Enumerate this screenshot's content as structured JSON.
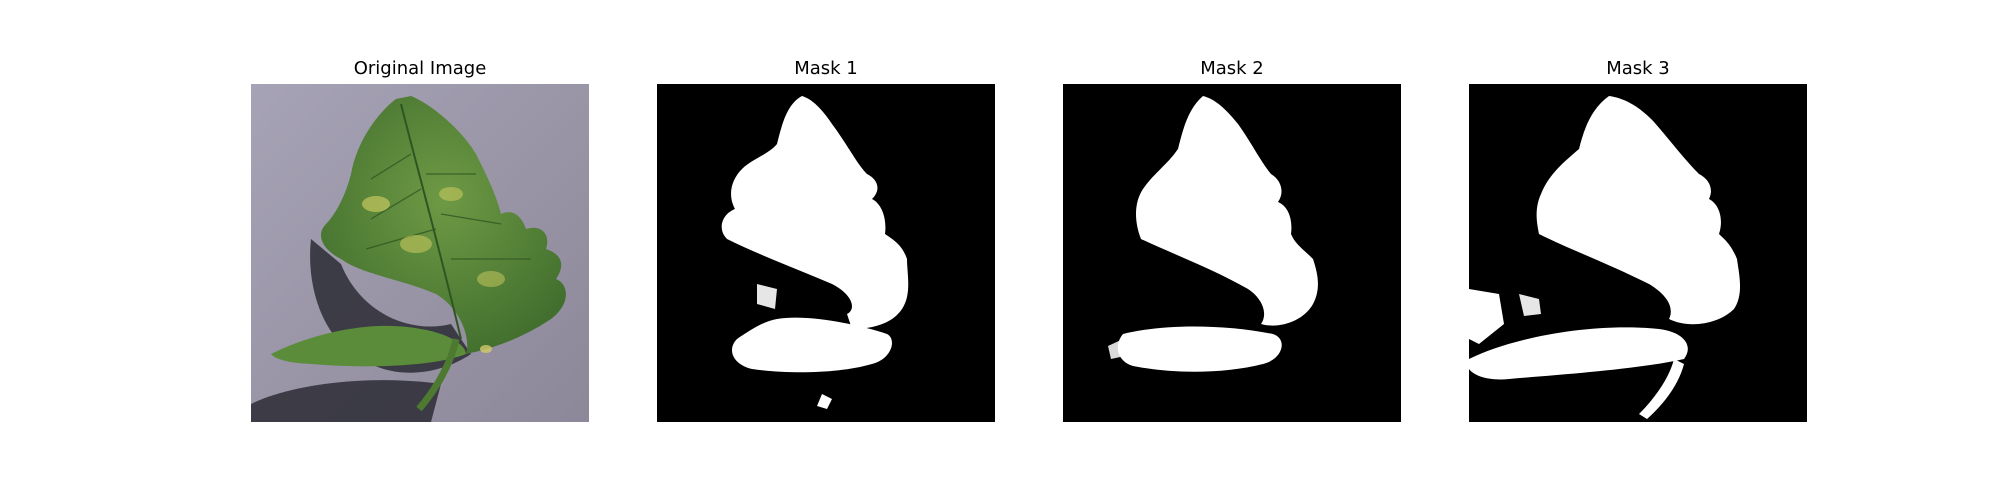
{
  "figure": {
    "panels": [
      {
        "title": "Original Image",
        "kind": "photo"
      },
      {
        "title": "Mask 1",
        "kind": "mask"
      },
      {
        "title": "Mask 2",
        "kind": "mask"
      },
      {
        "title": "Mask 3",
        "kind": "mask"
      }
    ]
  },
  "colors": {
    "background": "#ffffff",
    "mask_background": "#000000",
    "mask_foreground": "#ffffff",
    "surface": "#9b98a8",
    "leaf_dark": "#3f6a2c",
    "leaf_mid": "#5c8a3c",
    "leaf_light": "#b7c25a",
    "shadow": "#2a2a33"
  }
}
